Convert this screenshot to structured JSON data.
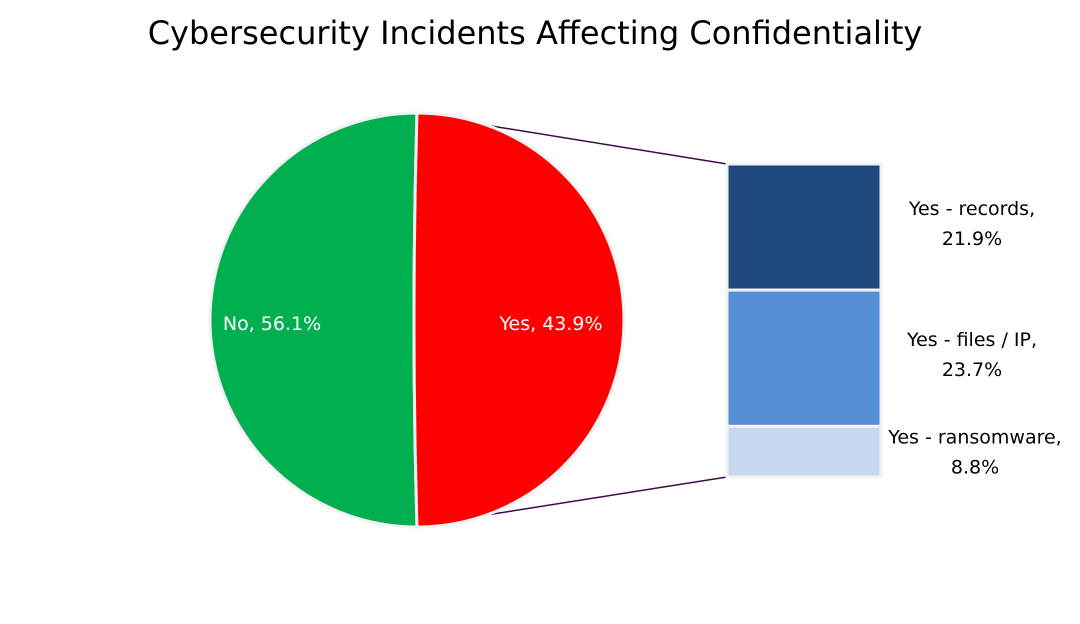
{
  "chart_data": {
    "type": "pie",
    "subtype": "pie-of-bar",
    "title": "Cybersecurity Incidents Affecting Confidentiality",
    "pie": [
      {
        "name": "No",
        "value": 56.1,
        "label": "No, 56.1%",
        "color": "#00b050"
      },
      {
        "name": "Yes",
        "value": 43.9,
        "label": "Yes, 43.9%",
        "color": "#ff0000"
      }
    ],
    "bar": [
      {
        "name": "Yes - records",
        "value": 21.9,
        "label_line1": "Yes - records,",
        "label_line2": "21.9%",
        "color": "#1f497d"
      },
      {
        "name": "Yes - files / IP",
        "value": 23.7,
        "label_line1": "Yes - files / IP,",
        "label_line2": "23.7%",
        "color": "#558ed5"
      },
      {
        "name": "Yes - ransomware",
        "value": 8.8,
        "label_line1": "Yes - ransomware,",
        "label_line2": "8.8%",
        "color": "#c6d9f1"
      }
    ],
    "connector_color": "#3f0a4a",
    "legend": "none"
  }
}
